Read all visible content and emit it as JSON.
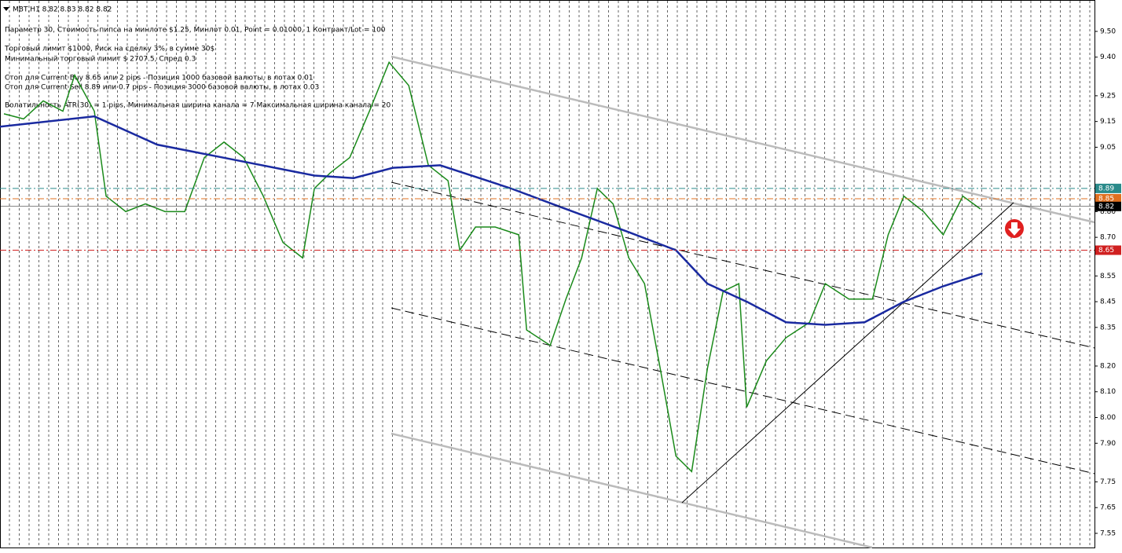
{
  "chart_data": {
    "type": "line",
    "title": "MBT,H1  8.82 8.83 8.82 8.82",
    "annotations": [
      "Параметр 30,  Стоимость пипса на минлоте  $1.25,   Минлот 0.01,  Point = 0.01000,  1 Контракт/Lot = 100",
      "Торговый лимит $1000, Риск на сделку 3%,  в сумме 30$",
      "Минимальный торговый лимит  $ 2707.5,  Спред  0.3",
      "Стоп для Current Buy 8.65  или  2 pips -  Позиция 1000 базовой валюты,  в лотах 0.01",
      "Стоп для Current Sell 8.89  или  0.7 pips -  Позиция 3000 базовой валюты,  в лотах 0.03",
      "Волатильность ATR(30) = 1 pips,  Минимальная ширина канала = 7    Максимальная ширина канала = 20"
    ],
    "xlim": [
      0,
      111.4
    ],
    "ylim": [
      7.495,
      9.622
    ],
    "yticks": [
      {
        "value": 9.5,
        "label": "9.50"
      },
      {
        "value": 9.4,
        "label": "9.40"
      },
      9.25,
      9.15,
      9.05,
      {
        "value": 8.8,
        "label": "8.80"
      },
      {
        "value": 8.7,
        "label": "8.70"
      },
      8.55,
      8.45,
      8.35,
      {
        "value": 8.2,
        "label": "8.20"
      },
      {
        "value": 8.1,
        "label": "8.10"
      },
      {
        "value": 8.0,
        "label": "8.00"
      },
      {
        "value": 7.9,
        "label": "7.90"
      },
      7.75,
      7.65,
      7.55
    ],
    "grid": true,
    "levels": [
      {
        "value": 8.89,
        "color": "#2a8a8a"
      },
      {
        "value": 8.85,
        "color": "#e07020"
      },
      {
        "value": 8.82,
        "color": "#000000"
      },
      {
        "value": 8.65,
        "color": "#d02020"
      }
    ],
    "series": [
      {
        "color": "#1a8a1a",
        "x": [
          0.4,
          2.4,
          4.4,
          6.4,
          7.6,
          9.6,
          10.8,
          12.8,
          14.8,
          16.8,
          18.8,
          20.8,
          22.8,
          24.8,
          26.8,
          28.8,
          30.8,
          32,
          33.6,
          35.6,
          37.6,
          39.6,
          41.6,
          43.6,
          45.6,
          46.8,
          48.4,
          50.4,
          52.8,
          53.6,
          56,
          57.6,
          59.2,
          60.8,
          62.4,
          64,
          65.6,
          67.2,
          68.8,
          70.4,
          72,
          73.6,
          75.2,
          76,
          78,
          80,
          82.4,
          84,
          86.4,
          88.8,
          90.4,
          92,
          94,
          96,
          98,
          99.8
        ],
        "values": [
          9.18,
          9.16,
          9.23,
          9.19,
          9.33,
          9.19,
          8.86,
          8.8,
          8.83,
          8.8,
          8.8,
          9.01,
          9.07,
          9.01,
          8.86,
          8.68,
          8.62,
          8.89,
          8.95,
          9.01,
          9.19,
          9.38,
          9.29,
          8.98,
          8.92,
          8.65,
          8.74,
          8.74,
          8.71,
          8.34,
          8.28,
          8.46,
          8.62,
          8.89,
          8.83,
          8.62,
          8.52,
          8.19,
          7.85,
          7.79,
          8.19,
          8.49,
          8.52,
          8.04,
          8.22,
          8.31,
          8.37,
          8.52,
          8.46,
          8.46,
          8.71,
          8.86,
          8.8,
          8.71,
          8.86,
          8.81
        ]
      },
      {
        "color": "#1a2aa0",
        "x": [
          0,
          9.6,
          16,
          24,
          32,
          36,
          40,
          44.8,
          52,
          57.6,
          64,
          68.8,
          72,
          76,
          80,
          84,
          88,
          92,
          96,
          100
        ],
        "values": [
          9.13,
          9.17,
          9.06,
          9.0,
          8.94,
          8.93,
          8.97,
          8.98,
          8.89,
          8.81,
          8.72,
          8.65,
          8.52,
          8.45,
          8.37,
          8.36,
          8.37,
          8.45,
          8.51,
          8.56
        ]
      }
    ]
  }
}
